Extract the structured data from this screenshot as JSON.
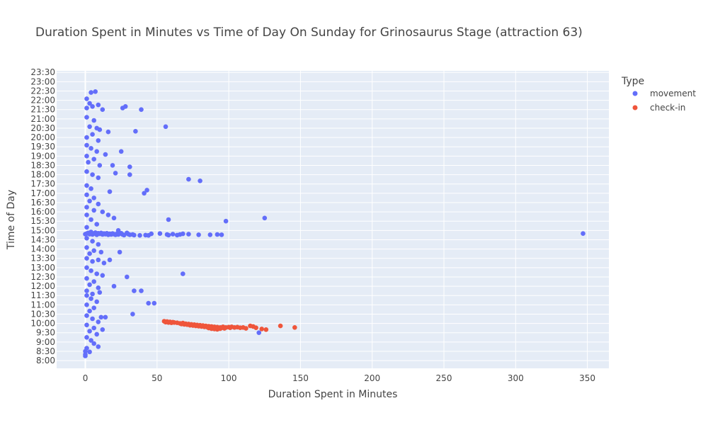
{
  "chart_data": {
    "type": "scatter",
    "title": "Duration Spent in Minutes vs Time of Day On Sunday for Grinosaurus Stage (attraction 63)",
    "xlabel": "Duration Spent in Minutes",
    "ylabel": "Time of Day",
    "xlim": [
      -20,
      365
    ],
    "ylim": [
      "7:35",
      "23:35"
    ],
    "x_ticks": [
      0,
      50,
      100,
      150,
      200,
      250,
      300,
      350
    ],
    "y_ticks": [
      "8:00",
      "8:30",
      "9:00",
      "9:30",
      "10:00",
      "10:30",
      "11:00",
      "11:30",
      "12:00",
      "12:30",
      "13:00",
      "13:30",
      "14:00",
      "14:30",
      "15:00",
      "15:30",
      "16:00",
      "16:30",
      "17:00",
      "17:30",
      "18:00",
      "18:30",
      "19:00",
      "19:30",
      "20:00",
      "20:30",
      "21:00",
      "21:30",
      "22:00",
      "22:30",
      "23:00",
      "23:30"
    ],
    "grid": true,
    "legend": {
      "title": "Type",
      "position": "right"
    },
    "series": [
      {
        "name": "movement",
        "color": "#636efa",
        "points": [
          [
            1,
            "22:05"
          ],
          [
            3,
            "21:50"
          ],
          [
            5,
            "21:40"
          ],
          [
            9,
            "21:45"
          ],
          [
            4,
            "22:25"
          ],
          [
            7,
            "22:28"
          ],
          [
            1,
            "21:35"
          ],
          [
            12,
            "21:30"
          ],
          [
            28,
            "21:40"
          ],
          [
            26,
            "21:35"
          ],
          [
            39,
            "21:30"
          ],
          [
            1,
            "21:05"
          ],
          [
            6,
            "20:55"
          ],
          [
            3,
            "20:35"
          ],
          [
            8,
            "20:30"
          ],
          [
            10,
            "20:25"
          ],
          [
            16,
            "20:18"
          ],
          [
            56,
            "20:35"
          ],
          [
            35,
            "20:20"
          ],
          [
            1,
            "20:00"
          ],
          [
            5,
            "20:10"
          ],
          [
            9,
            "19:50"
          ],
          [
            1,
            "19:35"
          ],
          [
            4,
            "19:25"
          ],
          [
            8,
            "19:15"
          ],
          [
            14,
            "19:05"
          ],
          [
            25,
            "19:15"
          ],
          [
            1,
            "19:00"
          ],
          [
            6,
            "18:50"
          ],
          [
            2,
            "18:40"
          ],
          [
            10,
            "18:30"
          ],
          [
            19,
            "18:30"
          ],
          [
            31,
            "18:25"
          ],
          [
            1,
            "18:10"
          ],
          [
            5,
            "18:00"
          ],
          [
            9,
            "17:50"
          ],
          [
            21,
            "18:05"
          ],
          [
            31,
            "18:00"
          ],
          [
            72,
            "17:45"
          ],
          [
            80,
            "17:40"
          ],
          [
            1,
            "17:25"
          ],
          [
            4,
            "17:15"
          ],
          [
            17,
            "17:05"
          ],
          [
            43,
            "17:10"
          ],
          [
            41,
            "17:00"
          ],
          [
            1,
            "16:55"
          ],
          [
            6,
            "16:45"
          ],
          [
            3,
            "16:35"
          ],
          [
            9,
            "16:25"
          ],
          [
            1,
            "16:15"
          ],
          [
            6,
            "16:05"
          ],
          [
            12,
            "16:00"
          ],
          [
            16,
            "15:50"
          ],
          [
            20,
            "15:40"
          ],
          [
            1,
            "15:50"
          ],
          [
            4,
            "15:35"
          ],
          [
            8,
            "15:20"
          ],
          [
            58,
            "15:35"
          ],
          [
            98,
            "15:30"
          ],
          [
            125,
            "15:40"
          ],
          [
            23,
            "15:00"
          ],
          [
            1,
            "15:10"
          ],
          [
            0,
            "14:48"
          ],
          [
            1,
            "14:50"
          ],
          [
            2,
            "14:52"
          ],
          [
            3,
            "14:48"
          ],
          [
            4,
            "14:55"
          ],
          [
            5,
            "14:47"
          ],
          [
            6,
            "14:50"
          ],
          [
            7,
            "14:53"
          ],
          [
            8,
            "14:46"
          ],
          [
            9,
            "14:51"
          ],
          [
            10,
            "14:49"
          ],
          [
            11,
            "14:52"
          ],
          [
            12,
            "14:47"
          ],
          [
            13,
            "14:50"
          ],
          [
            14,
            "14:48"
          ],
          [
            15,
            "14:51"
          ],
          [
            16,
            "14:46"
          ],
          [
            17,
            "14:49"
          ],
          [
            18,
            "14:47"
          ],
          [
            19,
            "14:50"
          ],
          [
            20,
            "14:48"
          ],
          [
            21,
            "14:46"
          ],
          [
            22,
            "14:49"
          ],
          [
            23,
            "14:47"
          ],
          [
            24,
            "14:50"
          ],
          [
            25,
            "14:51"
          ],
          [
            26,
            "14:47"
          ],
          [
            27,
            "14:45"
          ],
          [
            29,
            "14:52"
          ],
          [
            30,
            "14:48"
          ],
          [
            31,
            "14:46"
          ],
          [
            33,
            "14:47"
          ],
          [
            34,
            "14:45"
          ],
          [
            38,
            "14:44"
          ],
          [
            42,
            "14:45"
          ],
          [
            44,
            "14:44"
          ],
          [
            46,
            "14:49"
          ],
          [
            52,
            "14:50"
          ],
          [
            57,
            "14:47"
          ],
          [
            58,
            "14:45"
          ],
          [
            61,
            "14:48"
          ],
          [
            64,
            "14:45"
          ],
          [
            66,
            "14:47"
          ],
          [
            68,
            "14:49"
          ],
          [
            72,
            "14:48"
          ],
          [
            79,
            "14:46"
          ],
          [
            87,
            "14:46"
          ],
          [
            92,
            "14:47"
          ],
          [
            95,
            "14:46"
          ],
          [
            347,
            "14:50"
          ],
          [
            1,
            "14:35"
          ],
          [
            5,
            "14:25"
          ],
          [
            9,
            "14:15"
          ],
          [
            1,
            "14:05"
          ],
          [
            6,
            "13:55"
          ],
          [
            3,
            "13:45"
          ],
          [
            11,
            "13:50"
          ],
          [
            24,
            "13:50"
          ],
          [
            1,
            "13:30"
          ],
          [
            5,
            "13:20"
          ],
          [
            9,
            "13:25"
          ],
          [
            13,
            "13:15"
          ],
          [
            17,
            "13:25"
          ],
          [
            1,
            "13:00"
          ],
          [
            4,
            "12:50"
          ],
          [
            8,
            "12:40"
          ],
          [
            12,
            "12:35"
          ],
          [
            29,
            "12:30"
          ],
          [
            68,
            "12:40"
          ],
          [
            1,
            "12:25"
          ],
          [
            6,
            "12:15"
          ],
          [
            3,
            "12:05"
          ],
          [
            9,
            "11:55"
          ],
          [
            20,
            "12:00"
          ],
          [
            1,
            "11:45"
          ],
          [
            5,
            "11:35"
          ],
          [
            10,
            "11:40"
          ],
          [
            34,
            "11:45"
          ],
          [
            39,
            "11:45"
          ],
          [
            1,
            "11:30"
          ],
          [
            4,
            "11:20"
          ],
          [
            8,
            "11:10"
          ],
          [
            44,
            "11:05"
          ],
          [
            48,
            "11:05"
          ],
          [
            1,
            "11:00"
          ],
          [
            6,
            "10:50"
          ],
          [
            3,
            "10:40"
          ],
          [
            11,
            "10:20"
          ],
          [
            14,
            "10:20"
          ],
          [
            33,
            "10:30"
          ],
          [
            1,
            "10:25"
          ],
          [
            5,
            "10:15"
          ],
          [
            9,
            "10:05"
          ],
          [
            1,
            "9:55"
          ],
          [
            6,
            "9:45"
          ],
          [
            12,
            "9:40"
          ],
          [
            3,
            "9:35"
          ],
          [
            8,
            "9:25"
          ],
          [
            1,
            "9:15"
          ],
          [
            4,
            "9:05"
          ],
          [
            6,
            "8:55"
          ],
          [
            9,
            "8:45"
          ],
          [
            1,
            "8:40"
          ],
          [
            0,
            "8:30"
          ],
          [
            3,
            "8:28"
          ],
          [
            0,
            "8:20"
          ],
          [
            0,
            "8:15"
          ],
          [
            121,
            "9:30"
          ]
        ]
      },
      {
        "name": "check-in",
        "color": "#ef553b",
        "points": [
          [
            55,
            "10:07"
          ],
          [
            56,
            "10:04"
          ],
          [
            57,
            "10:06"
          ],
          [
            58,
            "10:03"
          ],
          [
            59,
            "10:05"
          ],
          [
            60,
            "10:02"
          ],
          [
            61,
            "10:04"
          ],
          [
            66,
            "10:00"
          ],
          [
            67,
            "9:58"
          ],
          [
            68,
            "10:01"
          ],
          [
            69,
            "9:57"
          ],
          [
            70,
            "9:59"
          ],
          [
            71,
            "9:56"
          ],
          [
            72,
            "9:58"
          ],
          [
            73,
            "9:54"
          ],
          [
            74,
            "9:57"
          ],
          [
            75,
            "9:53"
          ],
          [
            76,
            "9:56"
          ],
          [
            77,
            "9:52"
          ],
          [
            78,
            "9:55"
          ],
          [
            79,
            "9:51"
          ],
          [
            80,
            "9:54"
          ],
          [
            81,
            "9:50"
          ],
          [
            82,
            "9:53"
          ],
          [
            83,
            "9:49"
          ],
          [
            84,
            "9:52"
          ],
          [
            85,
            "9:48"
          ],
          [
            86,
            "9:51"
          ],
          [
            87,
            "9:47"
          ],
          [
            88,
            "9:50"
          ],
          [
            89,
            "9:46"
          ],
          [
            90,
            "9:49"
          ],
          [
            91,
            "9:45"
          ],
          [
            92,
            "9:48"
          ],
          [
            93,
            "9:44"
          ],
          [
            94,
            "9:47"
          ],
          [
            95,
            "9:46"
          ],
          [
            96,
            "9:49"
          ],
          [
            98,
            "9:47"
          ],
          [
            100,
            "9:48"
          ],
          [
            101,
            "9:46"
          ],
          [
            102,
            "9:49"
          ],
          [
            104,
            "9:47"
          ],
          [
            106,
            "9:48"
          ],
          [
            108,
            "9:46"
          ],
          [
            110,
            "9:47"
          ],
          [
            112,
            "9:44"
          ],
          [
            115,
            "9:52"
          ],
          [
            117,
            "9:50"
          ],
          [
            119,
            "9:46"
          ],
          [
            123,
            "9:42"
          ],
          [
            126,
            "9:40"
          ],
          [
            136,
            "9:52"
          ],
          [
            146,
            "9:47"
          ],
          [
            62,
            "10:03"
          ],
          [
            64,
            "10:02"
          ],
          [
            86,
            "9:45"
          ],
          [
            88,
            "9:43"
          ],
          [
            90,
            "9:42"
          ],
          [
            92,
            "9:41"
          ],
          [
            94,
            "9:43"
          ],
          [
            97,
            "9:44"
          ]
        ]
      }
    ]
  }
}
